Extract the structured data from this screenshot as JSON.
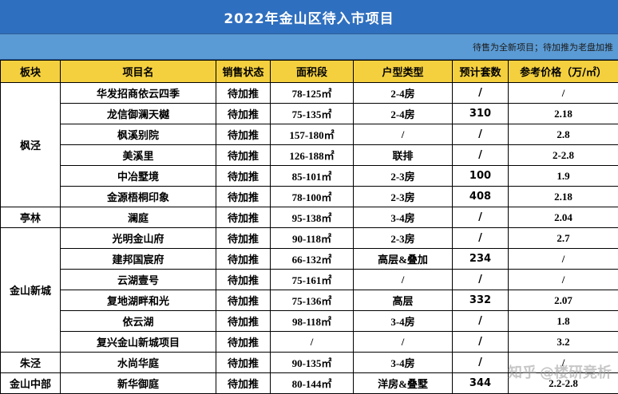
{
  "title": "2022年金山区待入市项目",
  "note": "待售为全新项目；待加推为老盘加推",
  "headers": [
    "板块",
    "项目名",
    "销售状态",
    "面积段",
    "户型类型",
    "预计套数",
    "参考价格（万/㎡）"
  ],
  "groups": [
    {
      "district": "枫泾",
      "rows": [
        {
          "name": "华发招商依云四季",
          "status": "待加推",
          "area": "78-125㎡",
          "type": "2-4房",
          "units": "/",
          "price": "/"
        },
        {
          "name": "龙信御澜天樾",
          "status": "待加推",
          "area": "75-135㎡",
          "type": "2-4房",
          "units": "310",
          "price": "2.18"
        },
        {
          "name": "枫溪别院",
          "status": "待加推",
          "area": "157-180㎡",
          "type": "/",
          "units": "/",
          "price": "2.8"
        },
        {
          "name": "美溪里",
          "status": "待加推",
          "area": "126-188㎡",
          "type": "联排",
          "units": "/",
          "price": "2-2.8"
        },
        {
          "name": "中冶墅境",
          "status": "待加推",
          "area": "85-101㎡",
          "type": "2-3房",
          "units": "100",
          "price": "1.9"
        },
        {
          "name": "金源梧桐印象",
          "status": "待加推",
          "area": "78-100㎡",
          "type": "2-3房",
          "units": "408",
          "price": "2.18"
        }
      ]
    },
    {
      "district": "亭林",
      "rows": [
        {
          "name": "澜庭",
          "status": "待加推",
          "area": "95-138㎡",
          "type": "3-4房",
          "units": "/",
          "price": "2.04"
        }
      ]
    },
    {
      "district": "金山新城",
      "rows": [
        {
          "name": "光明金山府",
          "status": "待加推",
          "area": "90-118㎡",
          "type": "2-3房",
          "units": "/",
          "price": "2.7"
        },
        {
          "name": "建邦国宸府",
          "status": "待加推",
          "area": "66-132㎡",
          "type": "高层&叠加",
          "units": "234",
          "price": "/"
        },
        {
          "name": "云湖壹号",
          "status": "待加推",
          "area": "75-161㎡",
          "type": "/",
          "units": "/",
          "price": "/"
        },
        {
          "name": "复地湖畔和光",
          "status": "待加推",
          "area": "75-136㎡",
          "type": "高层",
          "units": "332",
          "price": "2.07"
        },
        {
          "name": "依云湖",
          "status": "待加推",
          "area": "98-118㎡",
          "type": "3-4房",
          "units": "/",
          "price": "1.8"
        },
        {
          "name": "复兴金山新城项目",
          "status": "待加推",
          "area": "/",
          "type": "/",
          "units": "/",
          "price": "3.2"
        }
      ]
    },
    {
      "district": "朱泾",
      "rows": [
        {
          "name": "水尚华庭",
          "status": "待加推",
          "area": "90-135㎡",
          "type": "3-4房",
          "units": "/",
          "price": "/"
        }
      ]
    },
    {
      "district": "金山中部",
      "rows": [
        {
          "name": "新华御庭",
          "status": "待加推",
          "area": "80-144㎡",
          "type": "洋房&叠墅",
          "units": "344",
          "price": "2.2-2.8"
        }
      ]
    }
  ],
  "watermark": {
    "site": "知乎",
    "author": "@楼研竞析"
  },
  "colors": {
    "title_bg": "#2f6fbf",
    "note_bg": "#5b9bd5",
    "header_bg": "#f4d03f"
  }
}
